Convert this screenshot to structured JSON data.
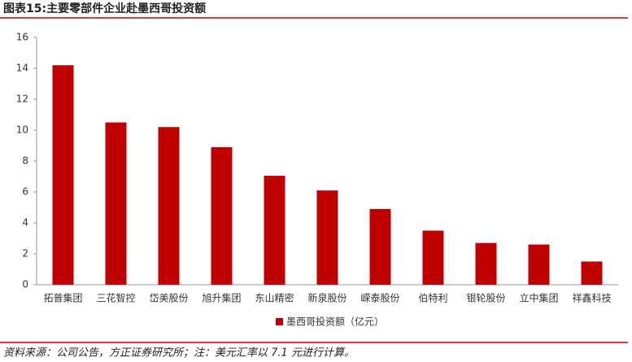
{
  "chart_data": {
    "type": "bar",
    "title": "图表15:主要零部件企业赴墨西哥投资额",
    "categories": [
      "拓普集团",
      "三花智控",
      "岱美股份",
      "旭升集团",
      "东山精密",
      "新泉股份",
      "嵘泰股份",
      "伯特利",
      "银轮股份",
      "立中集团",
      "祥鑫科技"
    ],
    "series": [
      {
        "name": "墨西哥投资额（亿元）",
        "color": "#c00000",
        "values": [
          14.2,
          10.5,
          10.2,
          8.9,
          7.05,
          6.1,
          4.9,
          3.5,
          2.7,
          2.6,
          1.5
        ]
      }
    ],
    "ylim": [
      0,
      16
    ],
    "yticks": [
      0,
      2,
      4,
      6,
      8,
      10,
      12,
      14,
      16
    ],
    "legend": "bottom",
    "note": "资料来源：公司公告，方正证券研究所；注：美元汇率以 7.1 元进行计算。"
  }
}
